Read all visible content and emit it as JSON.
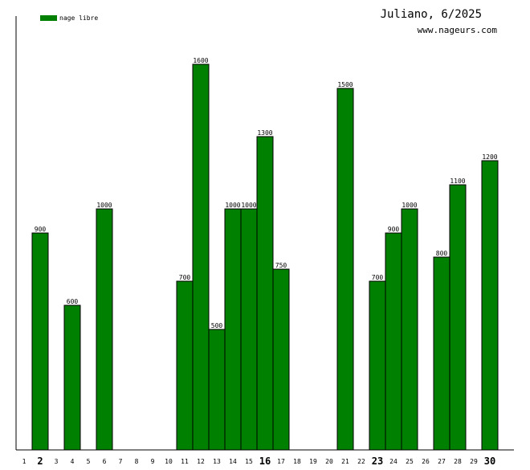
{
  "chart_data": {
    "type": "bar",
    "title": "Juliano, 6/2025",
    "subtitle": "www.nageurs.com",
    "legend_position": "top-left",
    "series": [
      {
        "name": "nage libre",
        "color": "#008000",
        "values": [
          null,
          900,
          null,
          600,
          null,
          1000,
          null,
          null,
          null,
          null,
          700,
          1600,
          500,
          1000,
          1000,
          1300,
          750,
          null,
          null,
          null,
          1500,
          null,
          700,
          900,
          1000,
          null,
          800,
          1100,
          null,
          1200
        ]
      }
    ],
    "categories": [
      "1",
      "2",
      "3",
      "4",
      "5",
      "6",
      "7",
      "8",
      "9",
      "10",
      "11",
      "12",
      "13",
      "14",
      "15",
      "16",
      "17",
      "18",
      "19",
      "20",
      "21",
      "22",
      "23",
      "24",
      "25",
      "26",
      "27",
      "28",
      "29",
      "30"
    ],
    "bold_categories": [
      "2",
      "16",
      "23",
      "30"
    ],
    "ylim": [
      0,
      1800
    ],
    "grid": false
  }
}
